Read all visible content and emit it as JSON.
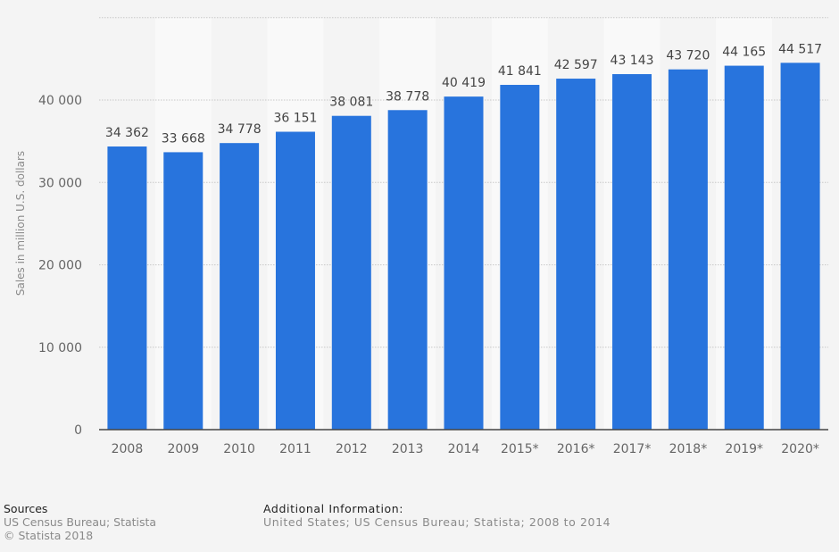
{
  "chart_data": {
    "type": "bar",
    "title": "",
    "xlabel": "",
    "ylabel": "Sales in million U.S. dollars",
    "ylim": [
      0,
      50000
    ],
    "yticks": [
      0,
      10000,
      20000,
      30000,
      40000,
      50000
    ],
    "ytick_labels": [
      "0",
      "10 000",
      "20 000",
      "30 000",
      "40 000",
      ""
    ],
    "grid": true,
    "categories": [
      "2008",
      "2009",
      "2010",
      "2011",
      "2012",
      "2013",
      "2014",
      "2015*",
      "2016*",
      "2017*",
      "2018*",
      "2019*",
      "2020*"
    ],
    "values": [
      34362,
      33668,
      34778,
      36151,
      38081,
      38778,
      40419,
      41841,
      42597,
      43143,
      43720,
      44165,
      44517
    ],
    "value_labels": [
      "34 362",
      "33 668",
      "34 778",
      "36 151",
      "38 081",
      "38 778",
      "40 419",
      "41 841",
      "42 597",
      "43 143",
      "43 720",
      "44 165",
      "44 517"
    ],
    "bar_color": "#2874dd",
    "stripe_color": "#f9f9f9",
    "legend": "none"
  },
  "footer": {
    "sources_heading": "Sources",
    "sources_line1": "US Census Bureau; Statista",
    "sources_line2": "© Statista 2018",
    "info_heading": "Additional Information:",
    "info_line1": "United States; US Census Bureau; Statista; 2008 to 2014"
  }
}
